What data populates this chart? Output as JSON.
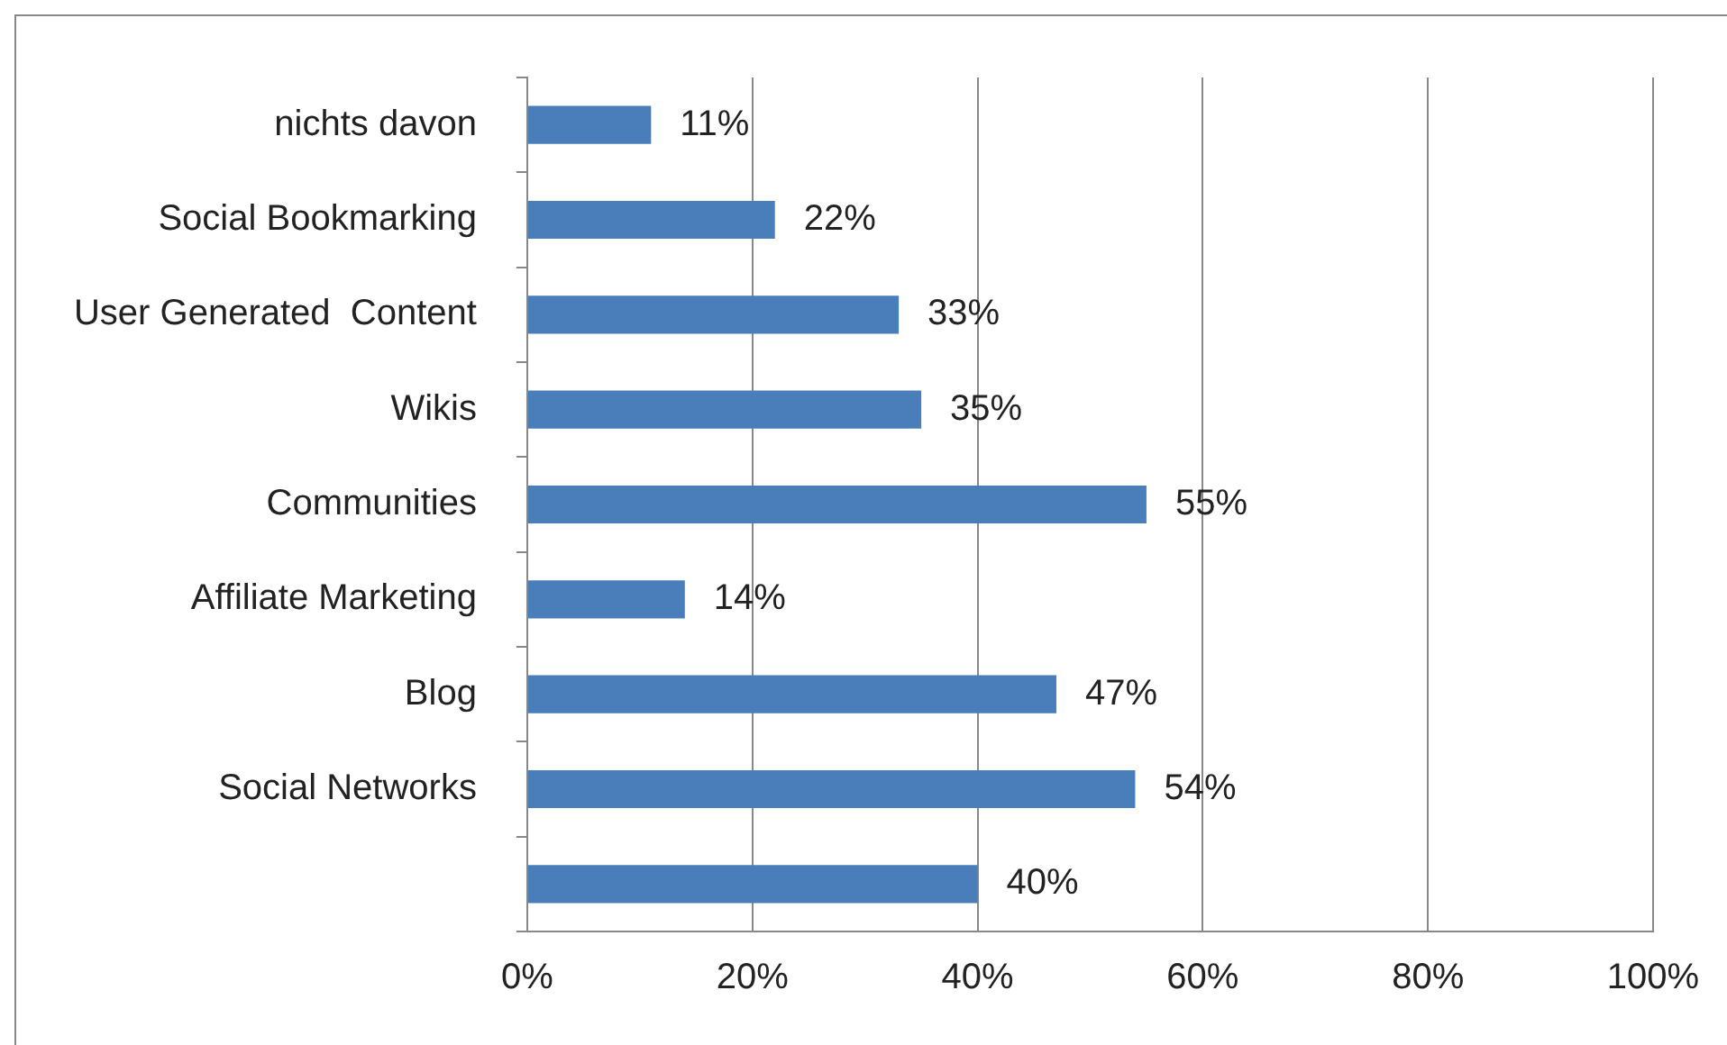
{
  "chart_data": {
    "type": "bar",
    "orientation": "horizontal",
    "categories": [
      "nichts davon",
      "Social Bookmarking",
      "User Generated  Content",
      "Wikis",
      "Communities",
      "Affiliate Marketing",
      "Blog",
      "Social Networks",
      null
    ],
    "values": [
      11,
      22,
      33,
      35,
      55,
      14,
      47,
      54,
      40
    ],
    "value_labels": [
      "11%",
      "22%",
      "33%",
      "35%",
      "55%",
      "14%",
      "47%",
      "54%",
      "40%"
    ],
    "color": "#4a7ebb",
    "xlim": [
      0,
      100
    ],
    "xticks": [
      {
        "value": 0,
        "label": "0%"
      },
      {
        "value": 20,
        "label": "20%"
      },
      {
        "value": 40,
        "label": "40%"
      },
      {
        "value": 60,
        "label": "60%"
      },
      {
        "value": 80,
        "label": "80%"
      },
      {
        "value": 100,
        "label": "100%"
      }
    ],
    "grid": "x",
    "legend": false
  }
}
